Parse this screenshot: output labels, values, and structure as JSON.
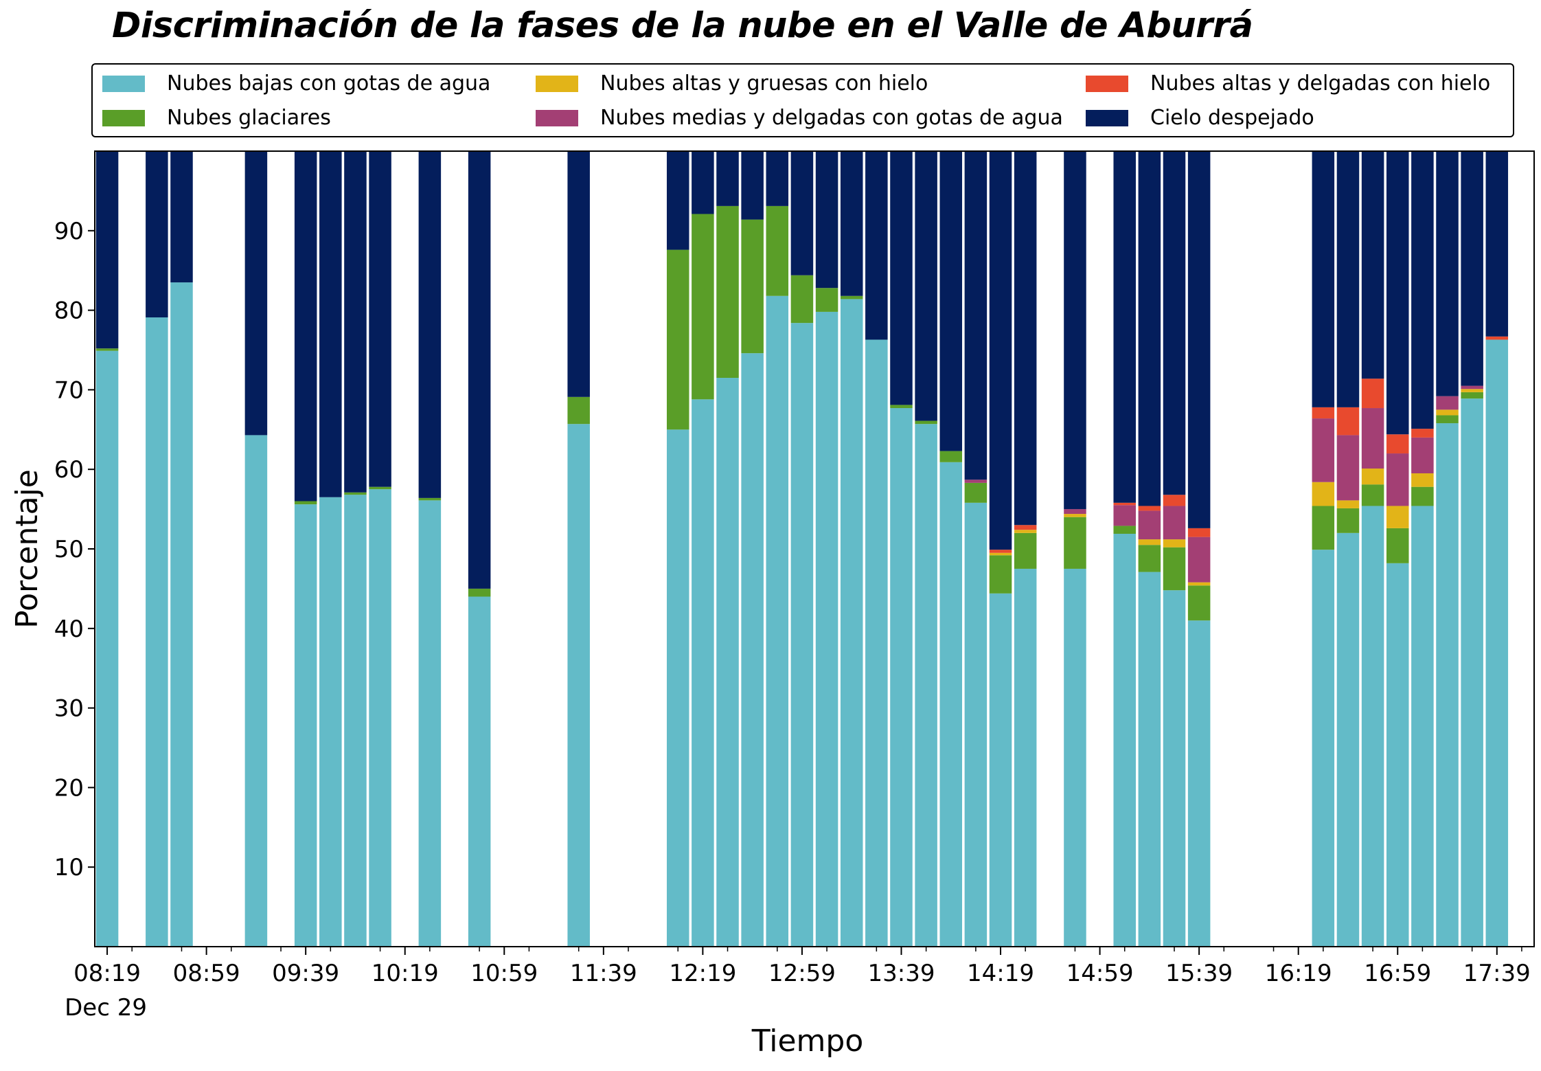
{
  "chart_data": {
    "type": "bar",
    "stacked": true,
    "title": "Discriminación de la fases de la nube en el Valle de Aburrá",
    "xlabel": "Tiempo",
    "ylabel": "Porcentaje",
    "ylim": [
      0,
      100
    ],
    "y_ticks": [
      "10",
      "20",
      "30",
      "40",
      "50",
      "60",
      "70",
      "80",
      "90"
    ],
    "x_tick_labels": [
      "08:19",
      "08:59",
      "09:39",
      "10:19",
      "10:59",
      "11:39",
      "12:19",
      "12:59",
      "13:39",
      "14:19",
      "14:59",
      "15:39",
      "16:19",
      "16:59",
      "17:39"
    ],
    "x_date_label": "Dec 29",
    "grid": false,
    "legend_position": "top",
    "x": [
      "08:19",
      "08:39",
      "08:49",
      "09:19",
      "09:39",
      "09:49",
      "09:59",
      "10:09",
      "10:29",
      "10:49",
      "11:29",
      "12:09",
      "12:19",
      "12:29",
      "12:39",
      "12:49",
      "12:59",
      "13:09",
      "13:19",
      "13:29",
      "13:39",
      "13:49",
      "13:59",
      "14:09",
      "14:19",
      "14:29",
      "14:49",
      "15:09",
      "15:19",
      "15:29",
      "15:39",
      "16:29",
      "16:39",
      "16:49",
      "16:59",
      "17:09",
      "17:19",
      "17:29",
      "17:39"
    ],
    "series": [
      {
        "name": "Nubes bajas con gotas de agua",
        "color": "#63bbc8",
        "values": [
          74.9,
          79.1,
          83.5,
          64.3,
          55.6,
          56.5,
          56.8,
          57.5,
          56.1,
          44.0,
          65.7,
          65.0,
          68.8,
          71.5,
          74.6,
          81.8,
          78.4,
          79.8,
          81.4,
          76.3,
          67.7,
          65.7,
          60.9,
          55.8,
          44.4,
          47.5,
          47.5,
          51.9,
          47.1,
          44.8,
          41.0,
          49.9,
          52.0,
          55.4,
          48.2,
          55.4,
          65.8,
          68.9,
          76.3
        ]
      },
      {
        "name": "Nubes glaciares",
        "color": "#5a9e28",
        "values": [
          0.3,
          0,
          0,
          0,
          0.4,
          0,
          0.3,
          0.3,
          0.3,
          1.0,
          3.4,
          22.6,
          23.3,
          21.6,
          16.8,
          11.3,
          6.0,
          3.0,
          0.4,
          0,
          0.4,
          0.4,
          1.4,
          2.5,
          4.8,
          4.5,
          6.5,
          1.0,
          3.4,
          5.4,
          4.4,
          5.5,
          3.1,
          2.7,
          4.4,
          2.4,
          1.0,
          0.8,
          0
        ]
      },
      {
        "name": "Nubes altas y gruesas con hielo",
        "color": "#e2b418",
        "values": [
          0,
          0,
          0,
          0,
          0,
          0,
          0,
          0,
          0,
          0,
          0,
          0,
          0,
          0,
          0,
          0,
          0,
          0,
          0,
          0,
          0,
          0,
          0,
          0,
          0.3,
          0.4,
          0.4,
          0,
          0.7,
          1.0,
          0.4,
          3.0,
          1.0,
          2.0,
          2.8,
          1.7,
          0.7,
          0.4,
          0
        ]
      },
      {
        "name": "Nubes medias y delgadas con gotas de agua",
        "color": "#a33f74",
        "values": [
          0,
          0,
          0,
          0,
          0,
          0,
          0,
          0,
          0,
          0,
          0,
          0,
          0,
          0,
          0,
          0,
          0,
          0,
          0,
          0,
          0,
          0,
          0,
          0.4,
          0,
          0,
          0.6,
          2.6,
          3.6,
          4.2,
          5.7,
          8.0,
          8.2,
          7.6,
          6.6,
          4.5,
          1.7,
          0.4,
          0
        ]
      },
      {
        "name": "Nubes altas y delgadas con hielo",
        "color": "#e84a2e",
        "values": [
          0,
          0,
          0,
          0,
          0,
          0,
          0,
          0,
          0,
          0,
          0,
          0,
          0,
          0,
          0,
          0,
          0,
          0,
          0,
          0,
          0,
          0,
          0,
          0,
          0.4,
          0.6,
          0,
          0.3,
          0.6,
          1.4,
          1.1,
          1.4,
          3.5,
          3.7,
          2.4,
          1.1,
          0,
          0,
          0.4
        ]
      },
      {
        "name": "Cielo despejado",
        "color": "#041e5c",
        "values": [
          24.8,
          20.9,
          16.5,
          35.7,
          44.0,
          43.5,
          42.9,
          42.2,
          43.6,
          55.0,
          30.9,
          12.4,
          7.9,
          6.9,
          8.6,
          6.9,
          15.6,
          17.2,
          18.2,
          23.7,
          31.9,
          33.9,
          37.7,
          41.3,
          50.1,
          47.0,
          45.0,
          44.2,
          44.6,
          43.2,
          47.4,
          32.2,
          32.2,
          28.6,
          35.6,
          34.9,
          30.8,
          29.5,
          23.3
        ]
      }
    ]
  }
}
